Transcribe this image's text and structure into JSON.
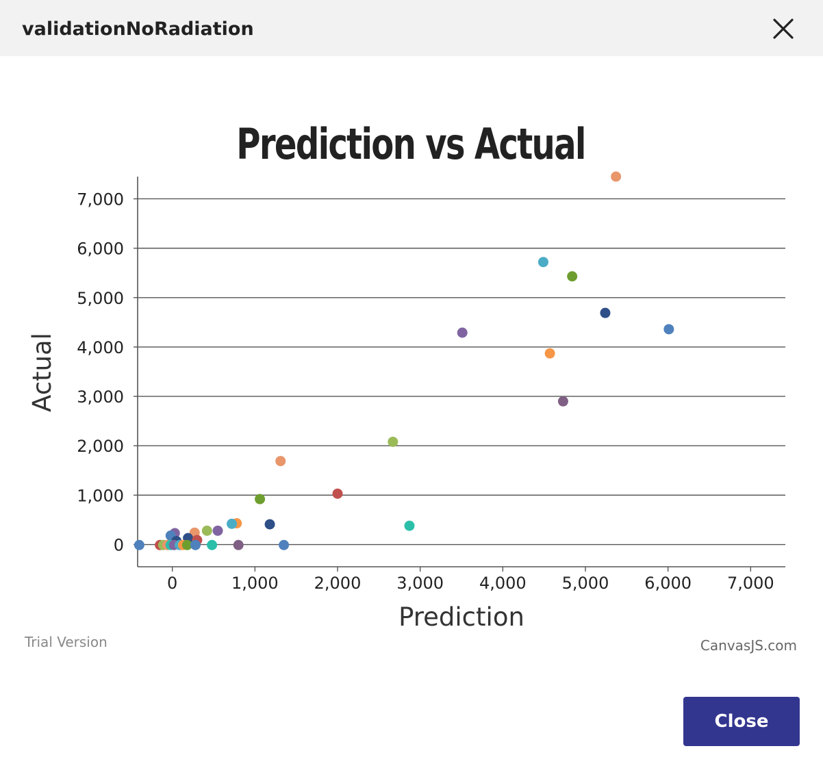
{
  "dialog": {
    "title": "validationNoRadiation",
    "close_button_label": "Close",
    "close_icon": "close-x-icon"
  },
  "chart_data": {
    "type": "scatter",
    "title": "Prediction vs Actual",
    "xlabel": "Prediction",
    "ylabel": "Actual",
    "xlim": [
      -420,
      7420
    ],
    "ylim": [
      -450,
      7450
    ],
    "x_ticks": [
      0,
      1000,
      2000,
      3000,
      4000,
      5000,
      6000,
      7000
    ],
    "x_tick_labels": [
      "0",
      "1,000",
      "2,000",
      "3,000",
      "4,000",
      "5,000",
      "6,000",
      "7,000"
    ],
    "y_ticks": [
      0,
      1000,
      2000,
      3000,
      4000,
      5000,
      6000,
      7000
    ],
    "y_tick_labels": [
      "0",
      "1,000",
      "2,000",
      "3,000",
      "4,000",
      "5,000",
      "6,000",
      "7,000"
    ],
    "grid": "horizontal",
    "watermark_left": "Trial Version",
    "watermark_right": "CanvasJS.com",
    "points": [
      {
        "x": 5370,
        "y": 7450,
        "color": "#e8966a"
      },
      {
        "x": 4490,
        "y": 5720,
        "color": "#4bacc6"
      },
      {
        "x": 4840,
        "y": 5430,
        "color": "#6e9e2f"
      },
      {
        "x": 5240,
        "y": 4690,
        "color": "#2e4f87"
      },
      {
        "x": 3510,
        "y": 4290,
        "color": "#8064a2"
      },
      {
        "x": 6010,
        "y": 4360,
        "color": "#4f81bd"
      },
      {
        "x": 4570,
        "y": 3870,
        "color": "#f79646"
      },
      {
        "x": 4730,
        "y": 2900,
        "color": "#7f6084"
      },
      {
        "x": 2670,
        "y": 2080,
        "color": "#9bbb59"
      },
      {
        "x": 1310,
        "y": 1690,
        "color": "#e8966a"
      },
      {
        "x": 2000,
        "y": 1030,
        "color": "#c0504d"
      },
      {
        "x": 1060,
        "y": 920,
        "color": "#6e9e2f"
      },
      {
        "x": 1180,
        "y": 410,
        "color": "#2e4f87"
      },
      {
        "x": 2870,
        "y": 380,
        "color": "#2bbfaa"
      },
      {
        "x": 780,
        "y": 430,
        "color": "#f79646"
      },
      {
        "x": 720,
        "y": 420,
        "color": "#4bacc6"
      },
      {
        "x": 550,
        "y": 280,
        "color": "#8064a2"
      },
      {
        "x": 420,
        "y": 280,
        "color": "#9bbb59"
      },
      {
        "x": 270,
        "y": 240,
        "color": "#e8966a"
      },
      {
        "x": 30,
        "y": 230,
        "color": "#8064a2"
      },
      {
        "x": -20,
        "y": 180,
        "color": "#4f81bd"
      },
      {
        "x": 190,
        "y": 130,
        "color": "#2e4f87"
      },
      {
        "x": 300,
        "y": 90,
        "color": "#c0504d"
      },
      {
        "x": 50,
        "y": 70,
        "color": "#2e4f87"
      },
      {
        "x": -400,
        "y": -10,
        "color": "#4f81bd"
      },
      {
        "x": -150,
        "y": -10,
        "color": "#c0504d"
      },
      {
        "x": -110,
        "y": -10,
        "color": "#9bbb59"
      },
      {
        "x": -60,
        "y": -10,
        "color": "#e8966a"
      },
      {
        "x": -20,
        "y": -10,
        "color": "#2bbfaa"
      },
      {
        "x": 20,
        "y": -10,
        "color": "#8064a2"
      },
      {
        "x": 90,
        "y": -10,
        "color": "#4bacc6"
      },
      {
        "x": 130,
        "y": -10,
        "color": "#f79646"
      },
      {
        "x": 180,
        "y": -10,
        "color": "#6e9e2f"
      },
      {
        "x": 280,
        "y": -10,
        "color": "#4f81bd"
      },
      {
        "x": 480,
        "y": -10,
        "color": "#2bbfaa"
      },
      {
        "x": 800,
        "y": -10,
        "color": "#7f6084"
      },
      {
        "x": 1350,
        "y": -10,
        "color": "#4f81bd"
      }
    ]
  }
}
